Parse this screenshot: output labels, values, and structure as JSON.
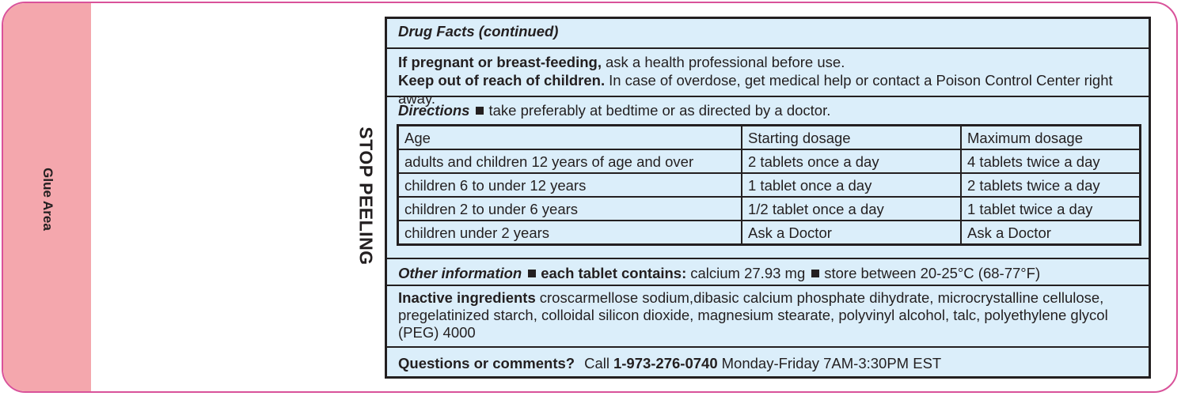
{
  "side": {
    "glue": "Glue Area",
    "stop": "STOP PEELING"
  },
  "header": "Drug Facts (continued)",
  "warnings": [
    {
      "bold": "If pregnant or breast-feeding,",
      "text": "ask a health professional before use."
    },
    {
      "bold": "Keep out of reach of children.",
      "text": "In case of overdose, get medical help or contact a Poison Control Center right away."
    }
  ],
  "directions": {
    "heading": "Directions",
    "text": "take preferably at bedtime or as directed by a doctor."
  },
  "table": {
    "header": [
      "Age",
      "Starting dosage",
      "Maximum dosage"
    ],
    "rows": [
      [
        "adults and children 12 years of age and over",
        "2 tablets once a day",
        "4 tablets twice a day"
      ],
      [
        "children 6 to under 12 years",
        "1 tablet once a day",
        "2 tablets twice a day"
      ],
      [
        "children 2 to under 6 years",
        "1/2 tablet once a day",
        "1 tablet twice a day"
      ],
      [
        "children under 2 years",
        "Ask a Doctor",
        "Ask a Doctor"
      ]
    ]
  },
  "other": {
    "heading": "Other information",
    "items": [
      {
        "bold": "each tablet contains:",
        "text": "calcium 27.93 mg"
      },
      {
        "text": "store between 20-25°C (68-77°F)"
      }
    ]
  },
  "inactive": {
    "heading": "Inactive ingredients",
    "text": "croscarmellose sodium,dibasic calcium phosphate dihydrate, microcrystalline cellulose, pregelatinized starch, colloidal silicon dioxide, magnesium stearate, polyvinyl alcohol, talc, polyethylene glycol (PEG) 4000"
  },
  "questions": {
    "heading": "Questions or comments?",
    "call": "Call",
    "phone": "1-973-276-0740",
    "hours": "Monday-Friday 7AM-3:30PM EST"
  }
}
